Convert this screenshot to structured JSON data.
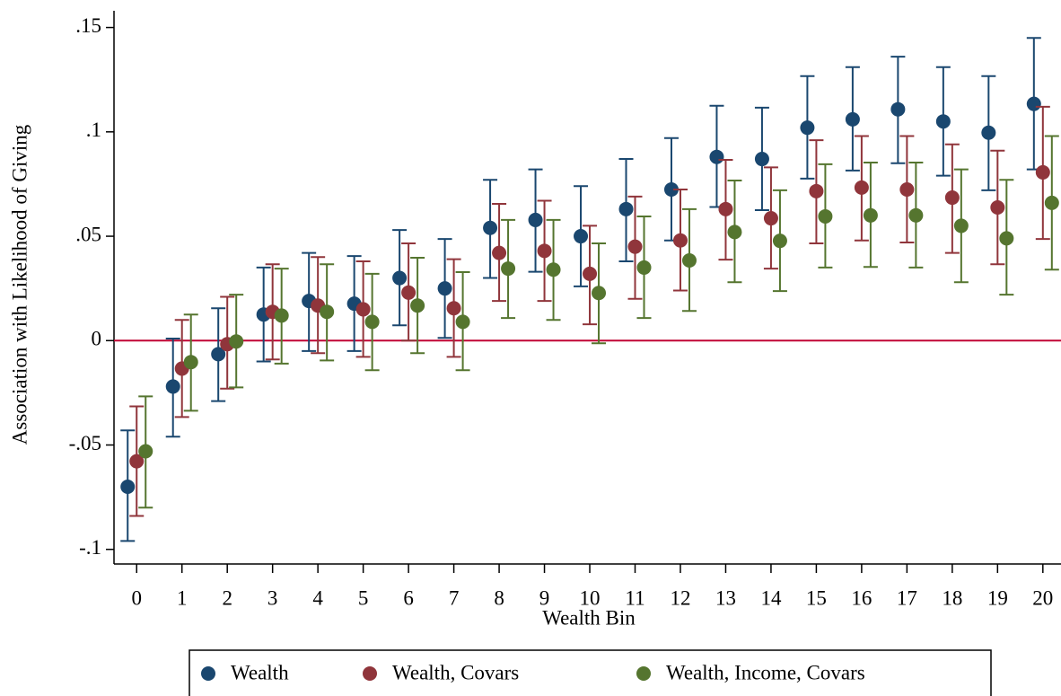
{
  "chart_data": {
    "type": "errorbar",
    "x_label": "Wealth Bin",
    "y_label": "Association with Likelihood of Giving",
    "x": [
      0,
      1,
      2,
      3,
      4,
      5,
      6,
      7,
      8,
      9,
      10,
      11,
      12,
      13,
      14,
      15,
      16,
      17,
      18,
      19,
      20
    ],
    "xlim": [
      -0.5,
      20.4
    ],
    "xticks": [
      0,
      1,
      2,
      3,
      4,
      5,
      6,
      7,
      8,
      9,
      10,
      11,
      12,
      13,
      14,
      15,
      16,
      17,
      18,
      19,
      20
    ],
    "ylim": [
      -0.107,
      0.158
    ],
    "yticks": [
      {
        "value": -0.1,
        "label": "-.1"
      },
      {
        "value": -0.05,
        "label": "-.05"
      },
      0,
      {
        "value": 0.05,
        "label": ".05"
      },
      {
        "value": 0.1,
        "label": ".1"
      },
      {
        "value": 0.15,
        "label": ".15"
      }
    ],
    "reference_line": 0,
    "reference_color": "#c10534",
    "legend": "bottom",
    "series": [
      {
        "name": "Wealth",
        "color": "#1a476f",
        "values": [
          -0.07,
          -0.022,
          -0.0065,
          0.0125,
          0.019,
          0.0177,
          0.03,
          0.025,
          0.054,
          0.0578,
          0.05,
          0.063,
          0.0724,
          0.088,
          0.087,
          0.102,
          0.106,
          0.1108,
          0.105,
          0.0996,
          0.1134
        ],
        "upper": [
          -0.043,
          0.001,
          0.0155,
          0.035,
          0.042,
          0.0405,
          0.053,
          0.0487,
          0.077,
          0.082,
          0.074,
          0.087,
          0.097,
          0.1125,
          0.1116,
          0.1267,
          0.131,
          0.136,
          0.131,
          0.1267,
          0.145
        ],
        "lower": [
          -0.096,
          -0.046,
          -0.029,
          -0.01,
          -0.005,
          -0.005,
          0.0073,
          0.0013,
          0.03,
          0.033,
          0.026,
          0.038,
          0.048,
          0.064,
          0.0625,
          0.0776,
          0.0815,
          0.085,
          0.079,
          0.072,
          0.082
        ]
      },
      {
        "name": "Wealth, Covars",
        "color": "#90353b",
        "values": [
          -0.0578,
          -0.0134,
          -0.0017,
          0.0138,
          0.0168,
          0.015,
          0.023,
          0.0155,
          0.042,
          0.043,
          0.032,
          0.045,
          0.048,
          0.063,
          0.0586,
          0.0716,
          0.0733,
          0.0724,
          0.0685,
          0.0638,
          0.0806
        ],
        "upper": [
          -0.0315,
          0.0099,
          0.021,
          0.0366,
          0.04,
          0.038,
          0.0466,
          0.039,
          0.0655,
          0.067,
          0.055,
          0.069,
          0.0724,
          0.0866,
          0.083,
          0.096,
          0.098,
          0.098,
          0.094,
          0.091,
          0.112
        ],
        "lower": [
          -0.084,
          -0.0366,
          -0.023,
          -0.009,
          -0.006,
          -0.0078,
          0,
          -0.0078,
          0.019,
          0.019,
          0.0078,
          0.02,
          0.024,
          0.0388,
          0.0345,
          0.0466,
          0.048,
          0.047,
          0.042,
          0.0366,
          0.0487
        ]
      },
      {
        "name": "Wealth, Income, Covars",
        "color": "#55752f",
        "values": [
          -0.053,
          -0.0103,
          -0.0004,
          0.012,
          0.0138,
          0.009,
          0.0168,
          0.009,
          0.0345,
          0.034,
          0.0228,
          0.035,
          0.0384,
          0.052,
          0.0478,
          0.0595,
          0.06,
          0.06,
          0.055,
          0.049,
          0.066
        ],
        "upper": [
          -0.0267,
          0.0125,
          0.022,
          0.0345,
          0.0366,
          0.032,
          0.0397,
          0.0328,
          0.0578,
          0.0578,
          0.0466,
          0.0595,
          0.063,
          0.0767,
          0.072,
          0.0845,
          0.0853,
          0.0853,
          0.082,
          0.077,
          0.098
        ],
        "lower": [
          -0.08,
          -0.0336,
          -0.0224,
          -0.011,
          -0.0095,
          -0.0142,
          -0.006,
          -0.0142,
          0.0108,
          0.0099,
          -0.0013,
          0.0108,
          0.0142,
          0.028,
          0.0237,
          0.035,
          0.0353,
          0.035,
          0.028,
          0.022,
          0.034
        ]
      }
    ]
  }
}
